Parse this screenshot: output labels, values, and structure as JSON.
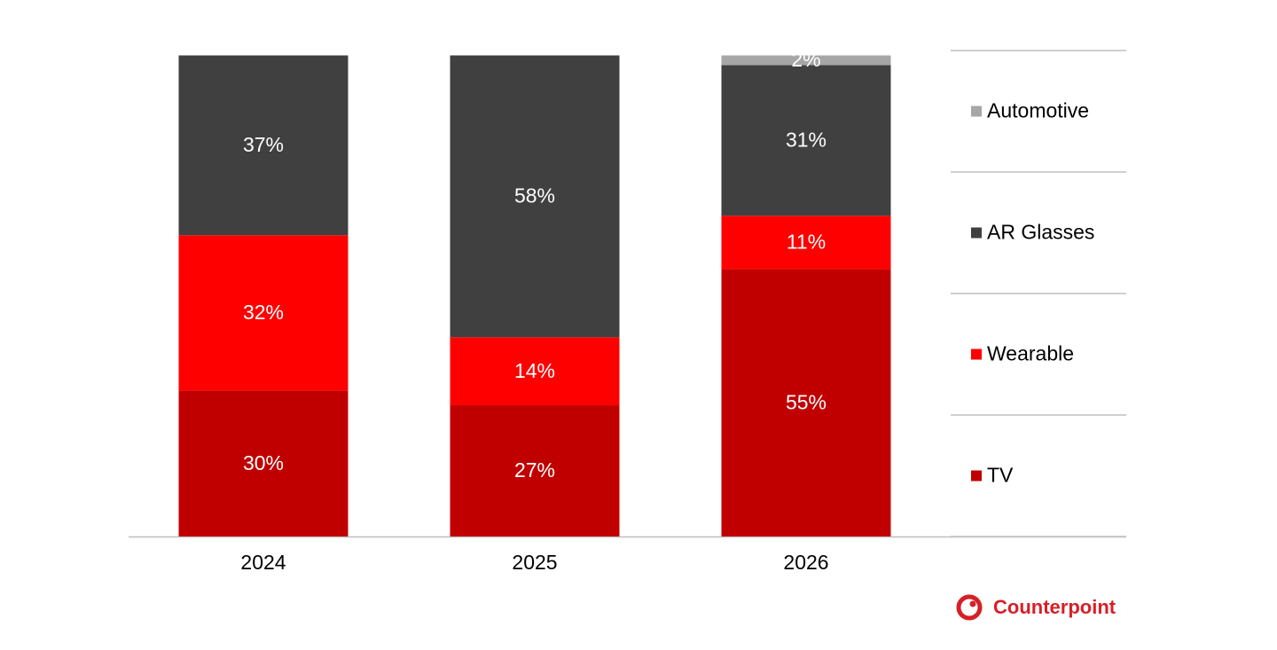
{
  "chart_data": {
    "type": "stacked_bar",
    "categories": [
      "2024",
      "2025",
      "2026"
    ],
    "series": [
      {
        "name": "TV",
        "color": "#c00000",
        "values": [
          30,
          27,
          55
        ],
        "value_labels": [
          "30%",
          "27%",
          "55%"
        ]
      },
      {
        "name": "Wearable",
        "color": "#ff0000",
        "values": [
          32,
          14,
          11
        ],
        "value_labels": [
          "32%",
          "14%",
          "11%"
        ]
      },
      {
        "name": "AR Glasses",
        "color": "#404040",
        "values": [
          37,
          58,
          31
        ],
        "value_labels": [
          "37%",
          "58%",
          "31%"
        ]
      },
      {
        "name": "Automotive",
        "color": "#a6a6a6",
        "values": [
          null,
          null,
          2
        ],
        "value_labels": [
          null,
          null,
          "2%"
        ]
      }
    ],
    "ylim": [
      0,
      100
    ],
    "legend": "right",
    "brand": "Counterpoint"
  }
}
